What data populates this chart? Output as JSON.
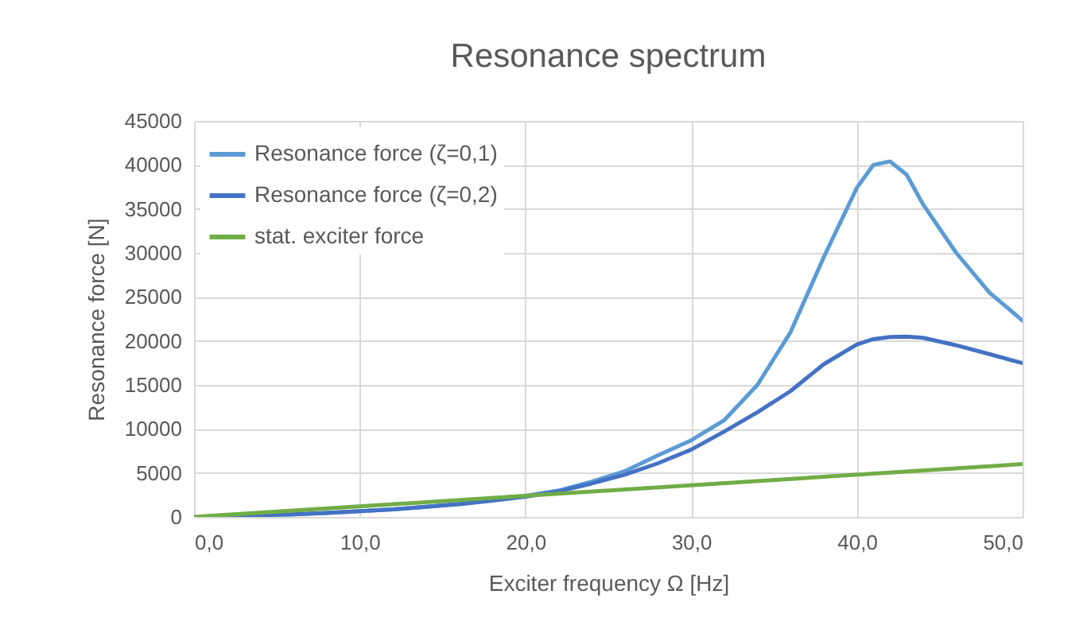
{
  "chart_data": {
    "type": "line",
    "title": "Resonance spectrum",
    "xlabel": "Exciter frequency Ω [Hz]",
    "ylabel": "Resonance force [N]",
    "xlim": [
      0,
      50
    ],
    "xticks": [
      {
        "value": 0,
        "label": "0,0"
      },
      {
        "value": 10,
        "label": "10,0"
      },
      {
        "value": 20,
        "label": "20,0"
      },
      {
        "value": 30,
        "label": "30,0"
      },
      {
        "value": 40,
        "label": "40,0"
      },
      {
        "value": 50,
        "label": "50,0"
      }
    ],
    "ylim": [
      0,
      45000
    ],
    "yticks": [
      0,
      5000,
      10000,
      15000,
      20000,
      25000,
      30000,
      35000,
      40000,
      45000
    ],
    "grid": true,
    "legend": "top left",
    "line_style": "solid",
    "series": [
      {
        "name": "Resonance force (ζ=0,1)",
        "color": "#5b9bd5",
        "x": [
          2,
          4,
          6,
          8,
          10,
          12,
          14,
          16,
          18,
          20,
          22,
          24,
          26,
          28,
          30,
          32,
          34,
          36,
          38,
          40,
          41,
          42,
          43,
          44,
          46,
          48,
          50
        ],
        "values": [
          100,
          200,
          300,
          450,
          650,
          850,
          1150,
          1500,
          1900,
          2400,
          3000,
          4000,
          5200,
          7000,
          8700,
          11000,
          15000,
          21000,
          29500,
          37400,
          40000,
          40400,
          38900,
          35500,
          30000,
          25500,
          22300
        ]
      },
      {
        "name": "Resonance force (ζ=0,2)",
        "color": "#4472c4",
        "x": [
          2,
          4,
          6,
          8,
          10,
          12,
          14,
          16,
          18,
          20,
          22,
          24,
          26,
          28,
          30,
          32,
          34,
          36,
          38,
          40,
          41,
          42,
          43,
          44,
          46,
          48,
          50
        ],
        "values": [
          100,
          200,
          300,
          450,
          650,
          850,
          1150,
          1450,
          1850,
          2300,
          2900,
          3800,
          4800,
          6100,
          7650,
          9700,
          11900,
          14300,
          17350,
          19600,
          20200,
          20450,
          20500,
          20350,
          19500,
          18500,
          17470
        ]
      },
      {
        "name": "stat. exciter force",
        "color": "#70ad47",
        "x": [
          0,
          50
        ],
        "values": [
          0,
          6000
        ]
      }
    ]
  }
}
